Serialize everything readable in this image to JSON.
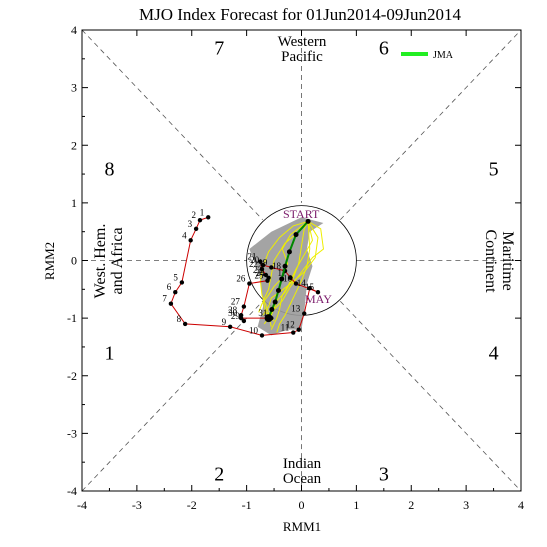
{
  "chart_data": {
    "type": "scatter",
    "title": "MJO Index Forecast for 01Jun2014-09Jun2014",
    "xlabel": "RMM1",
    "ylabel": "RMM2",
    "xlim": [
      -4,
      4
    ],
    "ylim": [
      -4,
      4
    ],
    "xticks": [
      "-4",
      "-3",
      "-2",
      "-1",
      "0",
      "1",
      "2",
      "3",
      "4"
    ],
    "yticks": [
      "-4",
      "-3",
      "-2",
      "-1",
      "0",
      "1",
      "2",
      "3",
      "4"
    ],
    "phases": [
      {
        "label": "1",
        "x": -3.5,
        "y": -1.6
      },
      {
        "label": "2",
        "x": -1.5,
        "y": -3.7
      },
      {
        "label": "3",
        "x": 1.5,
        "y": -3.7
      },
      {
        "label": "4",
        "x": 3.5,
        "y": -1.6
      },
      {
        "label": "5",
        "x": 3.5,
        "y": 1.6
      },
      {
        "label": "6",
        "x": 1.5,
        "y": 3.7
      },
      {
        "label": "7",
        "x": -1.5,
        "y": 3.7
      },
      {
        "label": "8",
        "x": -3.5,
        "y": 1.6
      }
    ],
    "regions": {
      "top": [
        "Western",
        "Pacific"
      ],
      "bottom": [
        "Indian",
        "Ocean"
      ],
      "left": [
        "West. Hem.",
        "and Africa"
      ],
      "right": [
        "Maritime",
        "Continent"
      ]
    },
    "legend": {
      "name": "JMA",
      "color": "#22ee22",
      "position": "top-right"
    },
    "annotations": {
      "start": "START",
      "month": "MAY",
      "color": "#7a1a6a"
    },
    "observed_path": {
      "color": "#cc0000",
      "days": [
        "1",
        "2",
        "3",
        "4",
        "5",
        "6",
        "7",
        "8",
        "9",
        "10",
        "11",
        "12",
        "13",
        "14",
        "15",
        "16",
        "17",
        "18",
        "19",
        "20",
        "21",
        "22",
        "23",
        "24",
        "25",
        "26",
        "27",
        "28",
        "29",
        "30",
        "31"
      ],
      "x": [
        -1.7,
        -1.85,
        -1.92,
        -2.02,
        -2.18,
        -2.3,
        -2.38,
        -2.12,
        -1.3,
        -0.72,
        -0.15,
        -0.05,
        0.05,
        0.15,
        0.3,
        -0.1,
        -0.2,
        -0.3,
        -0.55,
        -0.7,
        -0.75,
        -0.72,
        -0.65,
        -0.6,
        -0.62,
        -0.95,
        -1.05,
        -1.1,
        -1.05,
        -1.1,
        -0.55
      ],
      "y": [
        0.75,
        0.7,
        0.55,
        0.35,
        -0.38,
        -0.55,
        -0.75,
        -1.1,
        -1.15,
        -1.3,
        -1.25,
        -1.2,
        -0.92,
        -0.48,
        -0.55,
        -0.4,
        -0.3,
        -0.18,
        -0.12,
        -0.08,
        -0.02,
        -0.15,
        -0.25,
        -0.3,
        -0.35,
        -0.4,
        -0.8,
        -0.95,
        -1.05,
        -1.0,
        -1.0
      ]
    },
    "forecast_mean": {
      "color": "#008800",
      "x": [
        0.12,
        -0.1,
        -0.22,
        -0.3,
        -0.36,
        -0.42,
        -0.48,
        -0.54,
        -0.6
      ],
      "y": [
        0.68,
        0.45,
        0.15,
        -0.1,
        -0.32,
        -0.52,
        -0.72,
        -0.85,
        -1.0
      ]
    },
    "ensemble": {
      "color": "#eeee00",
      "members": [
        {
          "x": [
            0.12,
            0.2,
            0.05,
            -0.1,
            -0.25,
            -0.35,
            -0.4,
            -0.45,
            -0.55
          ],
          "y": [
            0.68,
            0.35,
            0.1,
            -0.15,
            -0.45,
            -0.6,
            -0.85,
            -1.0,
            -1.2
          ]
        },
        {
          "x": [
            0.12,
            -0.05,
            -0.3,
            -0.5,
            -0.55,
            -0.6,
            -0.7,
            -0.65,
            -0.5
          ],
          "y": [
            0.68,
            0.5,
            0.3,
            0.0,
            -0.25,
            -0.5,
            -0.7,
            -0.9,
            -1.05
          ]
        },
        {
          "x": [
            0.12,
            0.05,
            0.0,
            -0.05,
            -0.15,
            -0.3,
            -0.45,
            -0.55,
            -0.68
          ],
          "y": [
            0.68,
            0.55,
            0.25,
            -0.05,
            -0.3,
            -0.55,
            -0.7,
            -0.95,
            -1.1
          ]
        },
        {
          "x": [
            0.12,
            0.3,
            0.25,
            0.05,
            -0.2,
            -0.4,
            -0.55,
            -0.6,
            -0.7
          ],
          "y": [
            0.68,
            0.4,
            0.05,
            -0.2,
            -0.4,
            -0.55,
            -0.65,
            -0.8,
            -0.95
          ]
        },
        {
          "x": [
            0.12,
            -0.15,
            -0.4,
            -0.6,
            -0.7,
            -0.75,
            -0.72,
            -0.62,
            -0.55
          ],
          "y": [
            0.68,
            0.6,
            0.4,
            0.15,
            -0.1,
            -0.35,
            -0.6,
            -0.85,
            -1.15
          ]
        },
        {
          "x": [
            0.12,
            0.15,
            0.1,
            0.0,
            -0.1,
            -0.2,
            -0.3,
            -0.4,
            -0.45
          ],
          "y": [
            0.68,
            0.2,
            -0.1,
            -0.35,
            -0.55,
            -0.75,
            -0.95,
            -1.1,
            -1.25
          ]
        },
        {
          "x": [
            0.12,
            -0.2,
            -0.35,
            -0.25,
            -0.35,
            -0.5,
            -0.6,
            -0.72,
            -0.78
          ],
          "y": [
            0.68,
            0.45,
            0.2,
            -0.05,
            -0.3,
            -0.45,
            -0.6,
            -0.75,
            -0.9
          ]
        },
        {
          "x": [
            0.12,
            0.35,
            0.4,
            0.2,
            0.0,
            -0.2,
            -0.35,
            -0.5,
            -0.6
          ],
          "y": [
            0.68,
            0.55,
            0.2,
            0.05,
            -0.2,
            -0.45,
            -0.7,
            -0.85,
            -1.0
          ]
        }
      ]
    },
    "spread_band": {
      "color": "#9a9a9a",
      "x": [
        0.0,
        -0.55,
        -0.95,
        -0.75,
        -0.7,
        -0.8,
        -0.55,
        -0.25,
        0.0,
        0.05,
        0.1,
        0.2,
        0.1,
        0.15,
        0.4
      ],
      "y": [
        0.75,
        0.5,
        0.2,
        -0.3,
        -0.8,
        -1.15,
        -1.3,
        -1.2,
        -1.2,
        -0.9,
        -0.4,
        -0.1,
        0.2,
        0.5,
        0.65
      ]
    },
    "amplitude_circle_radius": 1
  }
}
